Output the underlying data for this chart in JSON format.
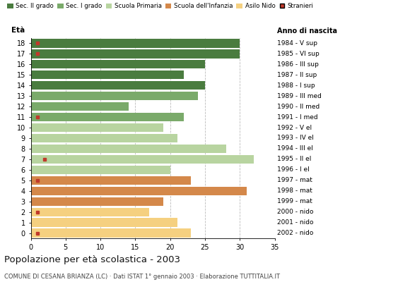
{
  "ages": [
    18,
    17,
    16,
    15,
    14,
    13,
    12,
    11,
    10,
    9,
    8,
    7,
    6,
    5,
    4,
    3,
    2,
    1,
    0
  ],
  "values": [
    30,
    30,
    25,
    22,
    25,
    24,
    14,
    22,
    19,
    21,
    28,
    32,
    20,
    23,
    31,
    19,
    17,
    21,
    23
  ],
  "stranieri_x": [
    1,
    1,
    0,
    0,
    0,
    0,
    0,
    1,
    0,
    0,
    0,
    2,
    0,
    1,
    0,
    0,
    1,
    0,
    1
  ],
  "colors": {
    "sec2": "#4a7c3f",
    "sec1": "#7aaa6a",
    "primaria": "#b8d4a0",
    "infanzia": "#d4884a",
    "nido": "#f5d080"
  },
  "bar_colors": [
    "sec2",
    "sec2",
    "sec2",
    "sec2",
    "sec2",
    "sec1",
    "sec1",
    "sec1",
    "primaria",
    "primaria",
    "primaria",
    "primaria",
    "primaria",
    "infanzia",
    "infanzia",
    "infanzia",
    "nido",
    "nido",
    "nido"
  ],
  "right_labels": [
    "1984 - V sup",
    "1985 - VI sup",
    "1986 - III sup",
    "1987 - II sup",
    "1988 - I sup",
    "1989 - III med",
    "1990 - II med",
    "1991 - I med",
    "1992 - V el",
    "1993 - IV el",
    "1994 - III el",
    "1995 - II el",
    "1996 - I el",
    "1997 - mat",
    "1998 - mat",
    "1999 - mat",
    "2000 - nido",
    "2001 - nido",
    "2002 - nido"
  ],
  "legend_labels": [
    "Sec. II grado",
    "Sec. I grado",
    "Scuola Primaria",
    "Scuola dell'Infanzia",
    "Asilo Nido",
    "Stranieri"
  ],
  "legend_colors": [
    "#4a7c3f",
    "#7aaa6a",
    "#b8d4a0",
    "#d4884a",
    "#f5d080",
    "#c0392b"
  ],
  "title": "Popolazione per età scolastica - 2003",
  "subtitle": "COMUNE DI CESANA BRIANZA (LC) · Dati ISTAT 1° gennaio 2003 · Elaborazione TUTTITALIA.IT",
  "label_eta": "Età",
  "label_anno": "Anno di nascita",
  "xlim": [
    0,
    35
  ],
  "xticks": [
    0,
    5,
    10,
    15,
    20,
    25,
    30,
    35
  ],
  "bar_height": 0.82
}
